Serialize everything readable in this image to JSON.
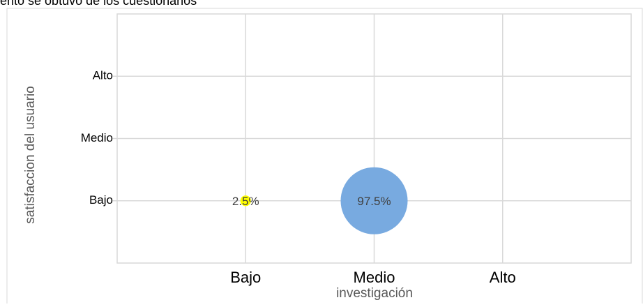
{
  "chart_data": {
    "type": "bubble",
    "title": "ento se obtuvo de los cuestionarios",
    "x_label": "investigación",
    "y_label": "satisfaccion del usuario",
    "categories": [
      "Bajo",
      "Medio",
      "Alto"
    ],
    "y_categories": [
      "Bajo",
      "Medio",
      "Alto"
    ],
    "x": [
      "Bajo",
      "Medio"
    ],
    "y": [
      "Bajo",
      "Bajo"
    ],
    "values": [
      2.5,
      97.5
    ],
    "value_labels": [
      "2.5%",
      "97.5%"
    ],
    "colors": [
      "#ffff00",
      "#78aae0"
    ],
    "grid": true
  }
}
